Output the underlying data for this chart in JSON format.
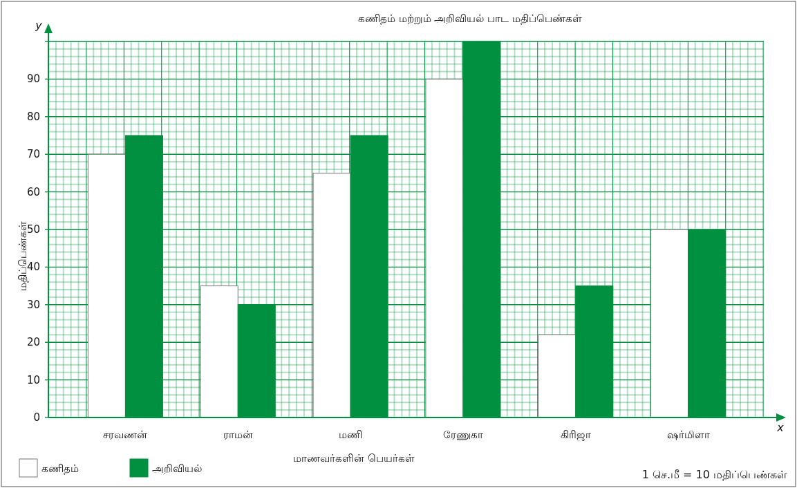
{
  "chart_data": {
    "type": "bar",
    "title": "கணிதம் மற்றும் அறிவியல் பாட மதிப்பெண்கள்",
    "xlabel": "மாணவர்களின் பெயர்கள்",
    "ylabel": "மதிப்பெண்கள்",
    "categories": [
      "சரவணன்",
      "ராமன்",
      "மணி",
      "ரேணுகா",
      "கிரிஜா",
      "ஷர்மிளா"
    ],
    "series": [
      {
        "name": "கணிதம்",
        "color": "#ffffff",
        "values": [
          70,
          35,
          65,
          90,
          22,
          50
        ]
      },
      {
        "name": "அறிவியல்",
        "color": "#009040",
        "values": [
          75,
          30,
          75,
          100,
          35,
          50
        ]
      }
    ],
    "ylim": [
      0,
      100
    ],
    "yticks": [
      0,
      10,
      20,
      30,
      40,
      50,
      60,
      70,
      80,
      90,
      {
        "value": 100,
        "label": null
      }
    ],
    "grid": true,
    "legend": "bottom left",
    "annotations": [
      "1 செ.மீ = 10 மதிப்பெண்கள்",
      "x",
      "y"
    ]
  }
}
